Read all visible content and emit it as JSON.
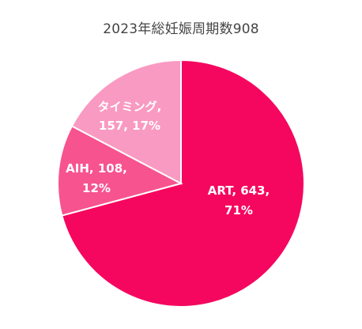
{
  "chart_data": {
    "type": "pie",
    "title": "2023年総妊娠周期数908",
    "slices": [
      {
        "label": "ART",
        "value": 643,
        "percent": "71%",
        "color": "#F5075F"
      },
      {
        "label": "AIH",
        "value": 108,
        "percent": "12%",
        "color": "#F7538F"
      },
      {
        "label": "タイミング",
        "value": 157,
        "percent": "17%",
        "color": "#F99AC2"
      }
    ],
    "slice_labels": [
      {
        "line1": "ART, 643,",
        "line2": "71%"
      },
      {
        "line1": "AIH, 108,",
        "line2": "12%"
      },
      {
        "line1": "タイミング,",
        "line2": "157, 17%"
      }
    ]
  }
}
